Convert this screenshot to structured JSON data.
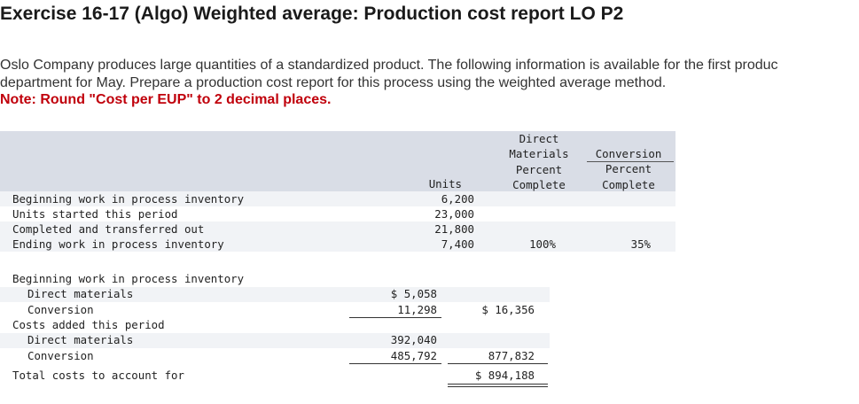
{
  "title": "Exercise 16-17 (Algo) Weighted average: Production cost report LO P2",
  "intro_line1": "Oslo Company produces large quantities of a standardized product. The following information is available for the first produc",
  "intro_line2": "department for May. Prepare a production cost report for this process using the weighted average method.",
  "note": "Note: Round \"Cost per EUP\" to 2 decimal places.",
  "units_table": {
    "headers": {
      "units": "Units",
      "dm": [
        "Direct",
        "Materials",
        "Percent",
        "Complete"
      ],
      "conv": [
        "Conversion",
        "Percent",
        "Complete"
      ]
    },
    "rows": [
      {
        "label": "Beginning work in process inventory",
        "units": "6,200",
        "dm": "",
        "conv": ""
      },
      {
        "label": "Units started this period",
        "units": "23,000",
        "dm": "",
        "conv": ""
      },
      {
        "label": "Completed and transferred out",
        "units": "21,800",
        "dm": "",
        "conv": ""
      },
      {
        "label": "Ending work in process inventory",
        "units": "7,400",
        "dm": "100%",
        "conv": "35%"
      }
    ]
  },
  "cost_table": {
    "bwip_label": "Beginning work in process inventory",
    "bwip_dm_label": "Direct materials",
    "bwip_dm_value": "$ 5,058",
    "bwip_conv_label": "Conversion",
    "bwip_conv_value": "11,298",
    "bwip_total": "$ 16,356",
    "added_label": "Costs added this period",
    "added_dm_label": "Direct materials",
    "added_dm_value": "392,040",
    "added_conv_label": "Conversion",
    "added_conv_value": "485,792",
    "added_total": "877,832",
    "total_label": "Total costs to account for",
    "total_value": "$ 894,188"
  }
}
